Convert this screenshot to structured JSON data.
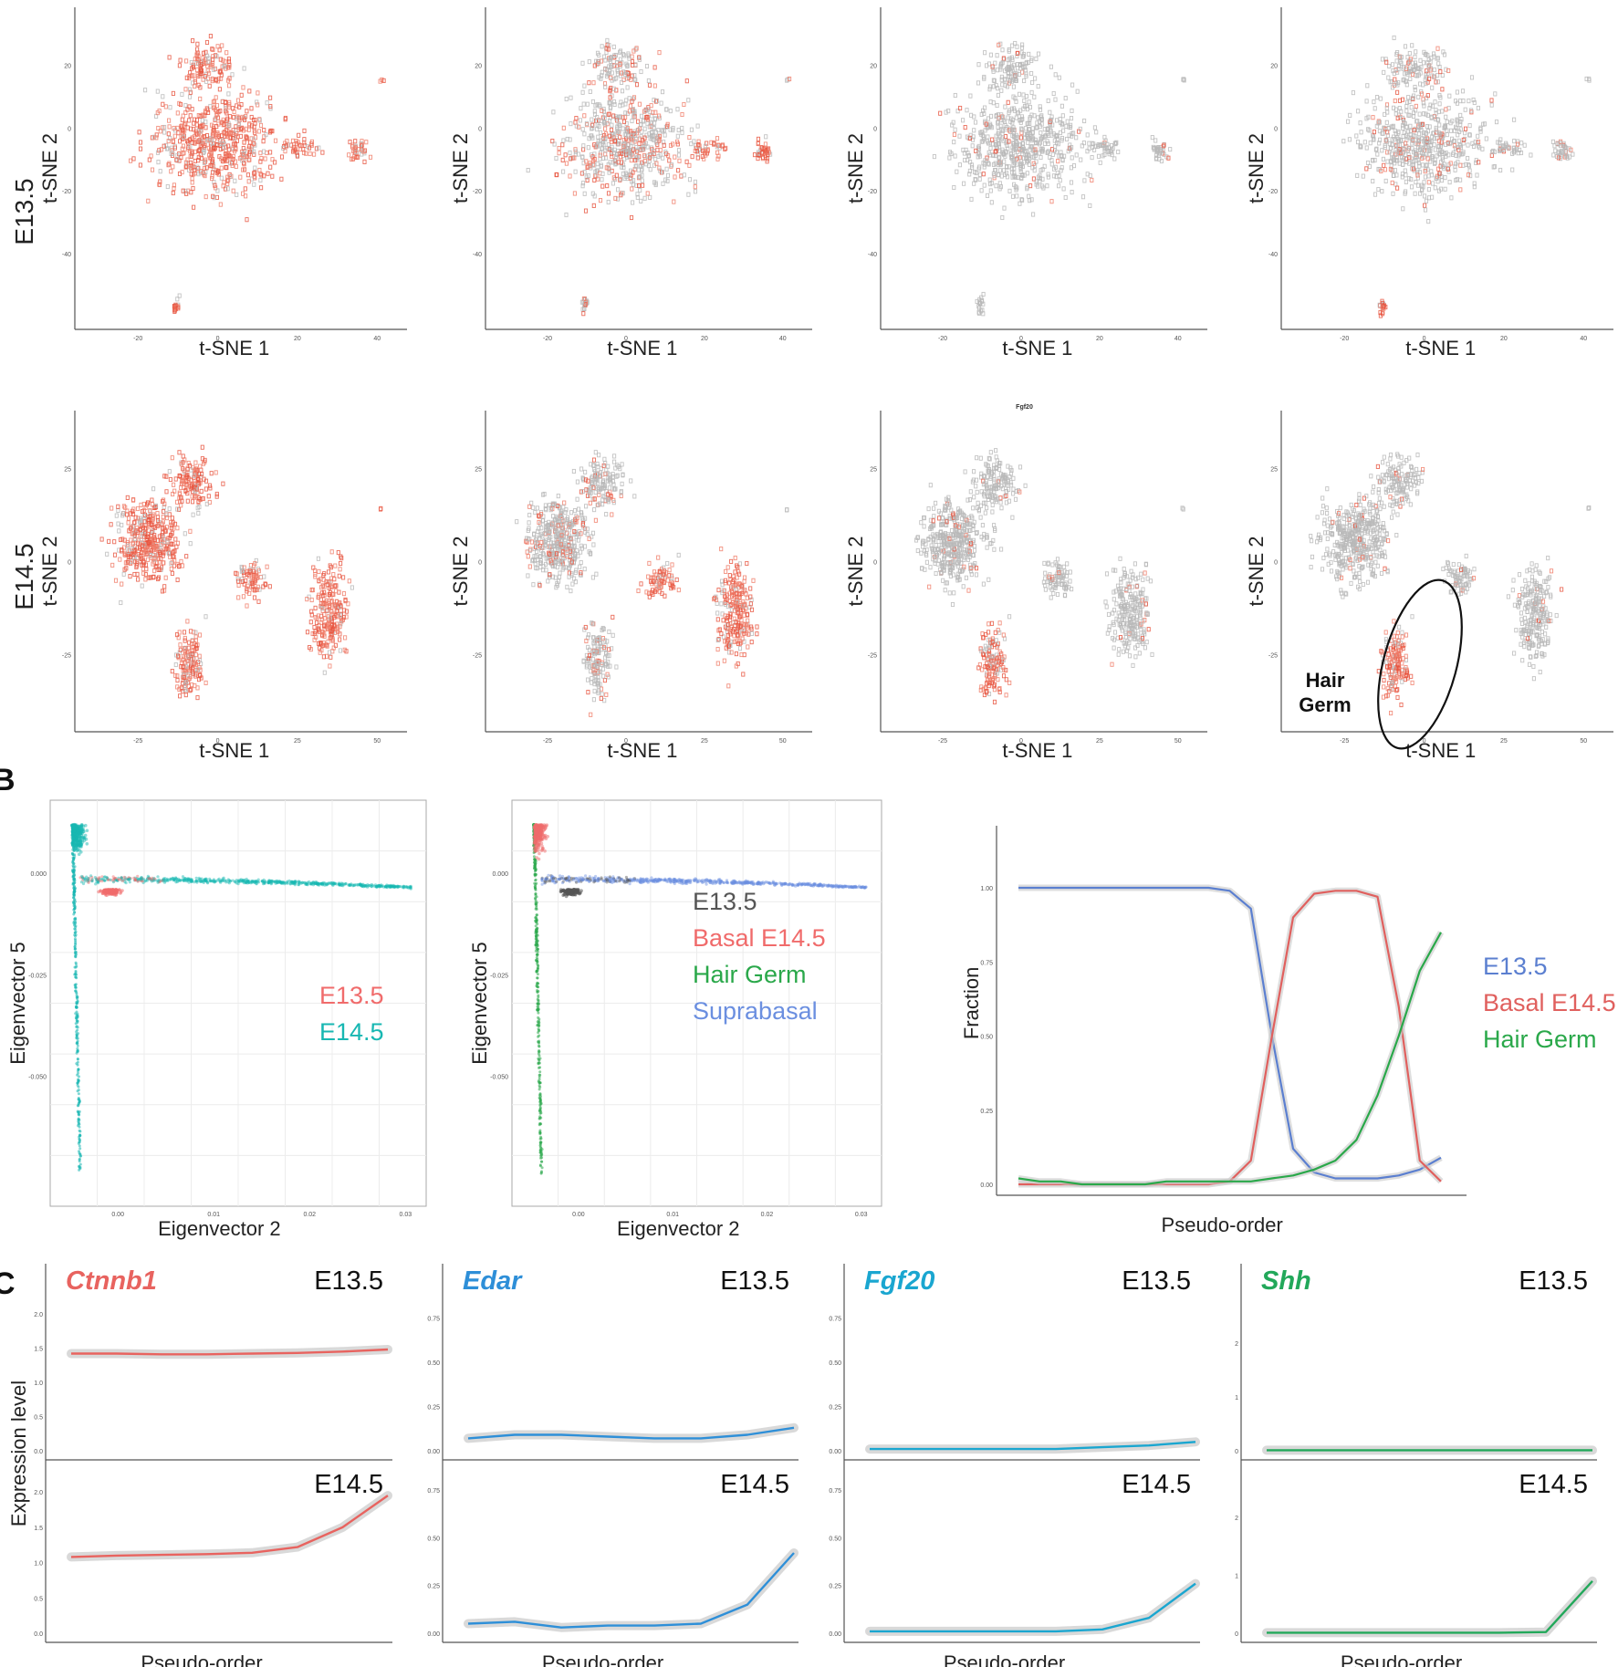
{
  "panel_letters": [
    "B",
    "C"
  ],
  "panel_a": {
    "row_labels": [
      "E13.5",
      "E14.5"
    ],
    "xlabel": "t-SNE 1",
    "ylabel": "t-SNE 2",
    "small_title_fgf20": "Fgf20",
    "hair_germ_label": [
      "Hair",
      "Germ"
    ],
    "ticks_e135_x": [
      "-20",
      "0",
      "20",
      "40"
    ],
    "ticks_e135_y": [
      "20",
      "0",
      "-20",
      "-40"
    ],
    "ticks_e145_x": [
      "-25",
      "0",
      "25",
      "50"
    ],
    "ticks_e145_y": [
      "25",
      "0",
      "-25"
    ]
  },
  "chart_data": [
    {
      "type": "scatter",
      "panel": "B-left",
      "xlabel": "Eigenvector 2",
      "ylabel": "Eigenvector 5",
      "x_ticks": [
        "0.00",
        "0.01",
        "0.02",
        "0.03"
      ],
      "y_ticks": [
        "0.000",
        "-0.025",
        "-0.050"
      ],
      "legend": [
        {
          "name": "E13.5",
          "color": "#f06b6b"
        },
        {
          "name": "E14.5",
          "color": "#17b7b2"
        }
      ]
    },
    {
      "type": "scatter",
      "panel": "B-middle",
      "xlabel": "Eigenvector 2",
      "ylabel": "Eigenvector 5",
      "x_ticks": [
        "0.00",
        "0.01",
        "0.02",
        "0.03"
      ],
      "y_ticks": [
        "0.000",
        "-0.025",
        "-0.050"
      ],
      "legend": [
        {
          "name": "E13.5",
          "color": "#555555"
        },
        {
          "name": "Basal E14.5",
          "color": "#f06b6b"
        },
        {
          "name": "Hair Germ",
          "color": "#2aa84a"
        },
        {
          "name": "Suprabasal",
          "color": "#6b8fe0"
        }
      ]
    },
    {
      "type": "line",
      "panel": "B-right",
      "xlabel": "Pseudo-order",
      "ylabel": "Fraction",
      "y_ticks": [
        "1.00",
        "0.75",
        "0.50",
        "0.25",
        "0.00"
      ],
      "ylim": [
        0,
        1
      ],
      "x": [
        0,
        0.05,
        0.1,
        0.15,
        0.2,
        0.25,
        0.3,
        0.35,
        0.4,
        0.45,
        0.5,
        0.55,
        0.6,
        0.65,
        0.7,
        0.75,
        0.8,
        0.85,
        0.9,
        0.95,
        1.0
      ],
      "series": [
        {
          "name": "E13.5",
          "color": "#5b7fd0",
          "values": [
            1.0,
            1.0,
            1.0,
            1.0,
            1.0,
            1.0,
            1.0,
            1.0,
            1.0,
            1.0,
            0.99,
            0.93,
            0.5,
            0.12,
            0.04,
            0.02,
            0.02,
            0.02,
            0.03,
            0.05,
            0.09
          ]
        },
        {
          "name": "Basal E14.5",
          "color": "#e0605e",
          "values": [
            0.0,
            0.0,
            0.0,
            0.0,
            0.0,
            0.0,
            0.0,
            0.0,
            0.0,
            0.0,
            0.01,
            0.08,
            0.5,
            0.9,
            0.98,
            0.99,
            0.99,
            0.97,
            0.6,
            0.08,
            0.01
          ]
        },
        {
          "name": "Hair Germ",
          "color": "#2aa84a",
          "values": [
            0.02,
            0.01,
            0.01,
            0.0,
            0.0,
            0.0,
            0.0,
            0.01,
            0.01,
            0.01,
            0.01,
            0.01,
            0.02,
            0.03,
            0.05,
            0.08,
            0.15,
            0.3,
            0.5,
            0.72,
            0.85
          ]
        }
      ]
    },
    {
      "type": "line",
      "panel": "C",
      "xlabel": "Pseudo-order",
      "ylabel": "Expression level",
      "genes": [
        {
          "name": "Ctnnb1",
          "color": "#e8635f",
          "e135": {
            "label": "E13.5",
            "ylim": [
              0,
              2.2
            ],
            "y_ticks": [
              "2.0",
              "1.5",
              "1.0",
              "0.5",
              "0.0"
            ],
            "values": [
              1.42,
              1.42,
              1.41,
              1.41,
              1.42,
              1.43,
              1.45,
              1.48
            ]
          },
          "e145": {
            "label": "E14.5",
            "ylim": [
              0,
              2.3
            ],
            "y_ticks": [
              "2.0",
              "1.5",
              "1.0",
              "0.5",
              "0.0"
            ],
            "values": [
              1.08,
              1.1,
              1.11,
              1.12,
              1.14,
              1.22,
              1.5,
              1.95
            ]
          }
        },
        {
          "name": "Edar",
          "color": "#2e8fd8",
          "e135": {
            "label": "E13.5",
            "ylim": [
              0,
              0.85
            ],
            "y_ticks": [
              "0.75",
              "0.50",
              "0.25",
              "0.00"
            ],
            "values": [
              0.07,
              0.09,
              0.09,
              0.08,
              0.07,
              0.07,
              0.09,
              0.13
            ]
          },
          "e145": {
            "label": "E14.5",
            "ylim": [
              0,
              0.85
            ],
            "y_ticks": [
              "0.75",
              "0.50",
              "0.25",
              "0.00"
            ],
            "values": [
              0.05,
              0.06,
              0.03,
              0.04,
              0.04,
              0.05,
              0.15,
              0.42
            ]
          }
        },
        {
          "name": "Fgf20",
          "color": "#1aa6d0",
          "e135": {
            "label": "E13.5",
            "ylim": [
              0,
              0.85
            ],
            "y_ticks": [
              "0.75",
              "0.50",
              "0.25",
              "0.00"
            ],
            "values": [
              0.01,
              0.01,
              0.01,
              0.01,
              0.01,
              0.02,
              0.03,
              0.05
            ]
          },
          "e145": {
            "label": "E14.5",
            "ylim": [
              0,
              0.85
            ],
            "y_ticks": [
              "0.75",
              "0.50",
              "0.25",
              "0.00"
            ],
            "values": [
              0.01,
              0.01,
              0.01,
              0.01,
              0.01,
              0.02,
              0.08,
              0.26
            ]
          }
        },
        {
          "name": "Shh",
          "color": "#22a85a",
          "e135": {
            "label": "E13.5",
            "ylim": [
              0,
              2.8
            ],
            "y_ticks": [
              "2",
              "1",
              "0"
            ],
            "values": [
              0.01,
              0.01,
              0.01,
              0.01,
              0.01,
              0.01,
              0.01,
              0.01
            ]
          },
          "e145": {
            "label": "E14.5",
            "ylim": [
              0,
              2.8
            ],
            "y_ticks": [
              "2",
              "1",
              "0"
            ],
            "values": [
              0.01,
              0.01,
              0.01,
              0.01,
              0.01,
              0.01,
              0.02,
              0.9
            ]
          }
        }
      ]
    }
  ]
}
